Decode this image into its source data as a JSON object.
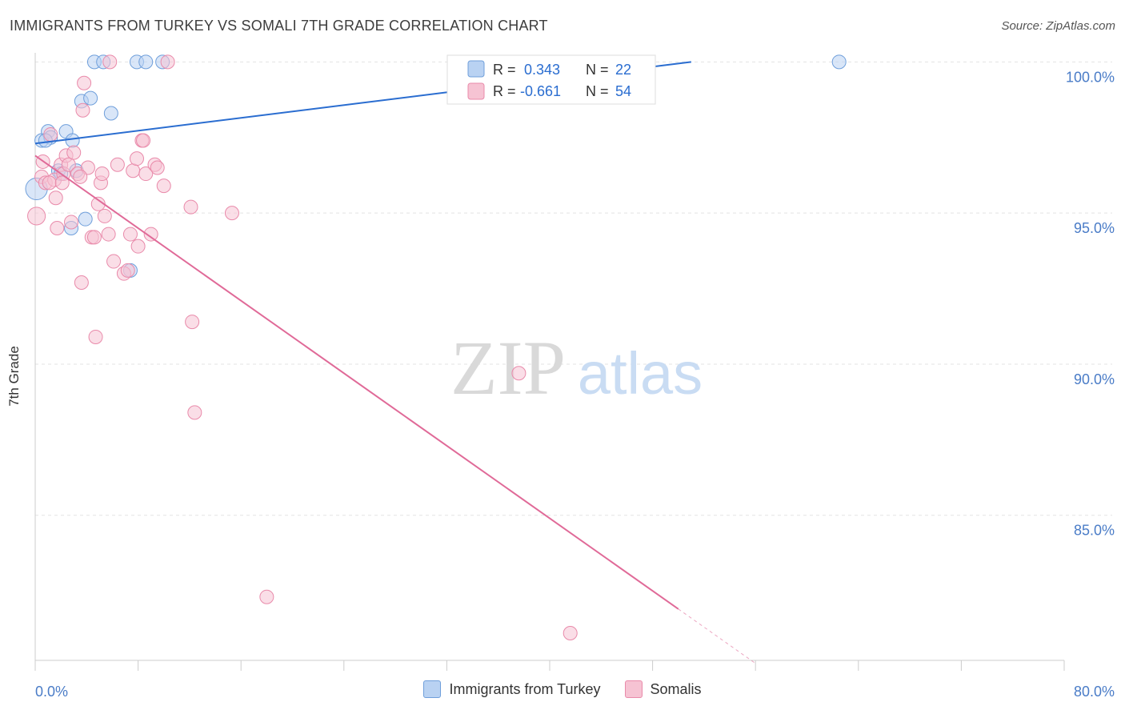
{
  "title": "IMMIGRANTS FROM TURKEY VS SOMALI 7TH GRADE CORRELATION CHART",
  "source": "Source: ZipAtlas.com",
  "watermark": {
    "zip": "ZIP",
    "atlas": "atlas"
  },
  "colors": {
    "blue_fill": "#b9d2f2",
    "blue_stroke": "#6f9fdb",
    "blue_line": "#2a6dd0",
    "pink_fill": "#f6c3d3",
    "pink_stroke": "#e98aaa",
    "pink_line": "#e06a98",
    "tick_text": "#4a7cc7"
  },
  "legend": {
    "r_label": "R =",
    "n_label": "N =",
    "series": [
      {
        "r": "0.343",
        "n": "22"
      },
      {
        "r": "-0.661",
        "n": "54"
      }
    ]
  },
  "chart_data": {
    "type": "scatter",
    "title": "IMMIGRANTS FROM TURKEY VS SOMALI 7TH GRADE CORRELATION CHART",
    "xlabel": "",
    "ylabel": "7th Grade",
    "xlim": [
      0,
      80
    ],
    "ylim": [
      80.2,
      100.3
    ],
    "x_tick_labels": [
      "0.0%",
      "80.0%"
    ],
    "y_ticks": [
      {
        "value": 100,
        "label": "100.0%"
      },
      {
        "value": 95,
        "label": "95.0%"
      },
      {
        "value": 90,
        "label": "90.0%"
      },
      {
        "value": 85,
        "label": "85.0%"
      }
    ],
    "series": [
      {
        "name": "Immigrants from Turkey",
        "color": "blue",
        "trend": {
          "x1": 0,
          "y1": 97.3,
          "x2": 51,
          "y2": 100.0,
          "dashed_to_x": 51
        },
        "points": [
          [
            0.1,
            95.8,
            1.6
          ],
          [
            0.5,
            97.4,
            1
          ],
          [
            1.0,
            97.7,
            1
          ],
          [
            1.2,
            97.5,
            1
          ],
          [
            1.8,
            96.4,
            1
          ],
          [
            2.4,
            97.7,
            1
          ],
          [
            2.9,
            97.4,
            1
          ],
          [
            3.2,
            96.4,
            1
          ],
          [
            2.8,
            94.5,
            1
          ],
          [
            3.9,
            94.8,
            1
          ],
          [
            3.6,
            98.7,
            1
          ],
          [
            4.3,
            98.8,
            1
          ],
          [
            5.9,
            98.3,
            1
          ],
          [
            4.6,
            100.0,
            1
          ],
          [
            5.3,
            100.0,
            1
          ],
          [
            7.9,
            100.0,
            1
          ],
          [
            8.6,
            100.0,
            1
          ],
          [
            9.9,
            100.0,
            1
          ],
          [
            7.4,
            93.1,
            1
          ],
          [
            2.0,
            96.3,
            1
          ],
          [
            0.8,
            97.4,
            1
          ],
          [
            62.5,
            100.0,
            1
          ]
        ]
      },
      {
        "name": "Somalis",
        "color": "pink",
        "trend": {
          "x1": 0,
          "y1": 96.9,
          "x2": 50,
          "y2": 81.9,
          "dashed_to_x": 56
        },
        "points": [
          [
            0.1,
            94.9,
            1.3
          ],
          [
            0.5,
            96.2,
            1
          ],
          [
            0.8,
            96.0,
            1
          ],
          [
            1.2,
            97.6,
            1
          ],
          [
            1.5,
            96.1,
            1
          ],
          [
            1.6,
            95.5,
            1
          ],
          [
            1.7,
            94.5,
            1
          ],
          [
            2.0,
            96.6,
            1
          ],
          [
            2.2,
            96.3,
            1
          ],
          [
            2.4,
            96.9,
            1
          ],
          [
            2.6,
            96.6,
            1
          ],
          [
            2.8,
            94.7,
            1
          ],
          [
            3.0,
            97.0,
            1
          ],
          [
            3.3,
            96.3,
            1
          ],
          [
            3.6,
            92.7,
            1
          ],
          [
            3.7,
            98.4,
            1
          ],
          [
            3.8,
            99.3,
            1
          ],
          [
            4.1,
            96.5,
            1
          ],
          [
            4.4,
            94.2,
            1
          ],
          [
            4.6,
            94.2,
            1
          ],
          [
            4.7,
            90.9,
            1
          ],
          [
            4.9,
            95.3,
            1
          ],
          [
            5.1,
            96.0,
            1
          ],
          [
            5.2,
            96.3,
            1
          ],
          [
            5.4,
            94.9,
            1
          ],
          [
            5.7,
            94.3,
            1
          ],
          [
            6.1,
            93.4,
            1
          ],
          [
            6.4,
            96.6,
            1
          ],
          [
            6.9,
            93.0,
            1
          ],
          [
            7.2,
            93.1,
            1
          ],
          [
            7.4,
            94.3,
            1
          ],
          [
            7.6,
            96.4,
            1
          ],
          [
            7.9,
            96.8,
            1
          ],
          [
            8.0,
            93.9,
            1
          ],
          [
            8.3,
            97.4,
            1
          ],
          [
            8.6,
            96.3,
            1
          ],
          [
            9.0,
            94.3,
            1
          ],
          [
            9.3,
            96.6,
            1
          ],
          [
            9.5,
            96.5,
            1
          ],
          [
            10.0,
            95.9,
            1
          ],
          [
            10.3,
            100.0,
            1
          ],
          [
            8.4,
            97.4,
            1
          ],
          [
            12.1,
            95.2,
            1
          ],
          [
            12.2,
            91.4,
            1
          ],
          [
            12.4,
            88.4,
            1
          ],
          [
            15.3,
            95.0,
            1
          ],
          [
            18.0,
            82.3,
            1
          ],
          [
            37.6,
            89.7,
            1
          ],
          [
            41.6,
            81.1,
            1
          ],
          [
            5.8,
            100.0,
            1
          ],
          [
            1.1,
            96.0,
            1
          ],
          [
            0.6,
            96.7,
            1
          ],
          [
            2.1,
            96.0,
            1
          ],
          [
            3.5,
            96.2,
            1
          ]
        ]
      }
    ]
  },
  "bottom_legend": [
    "Immigrants from Turkey",
    "Somalis"
  ]
}
